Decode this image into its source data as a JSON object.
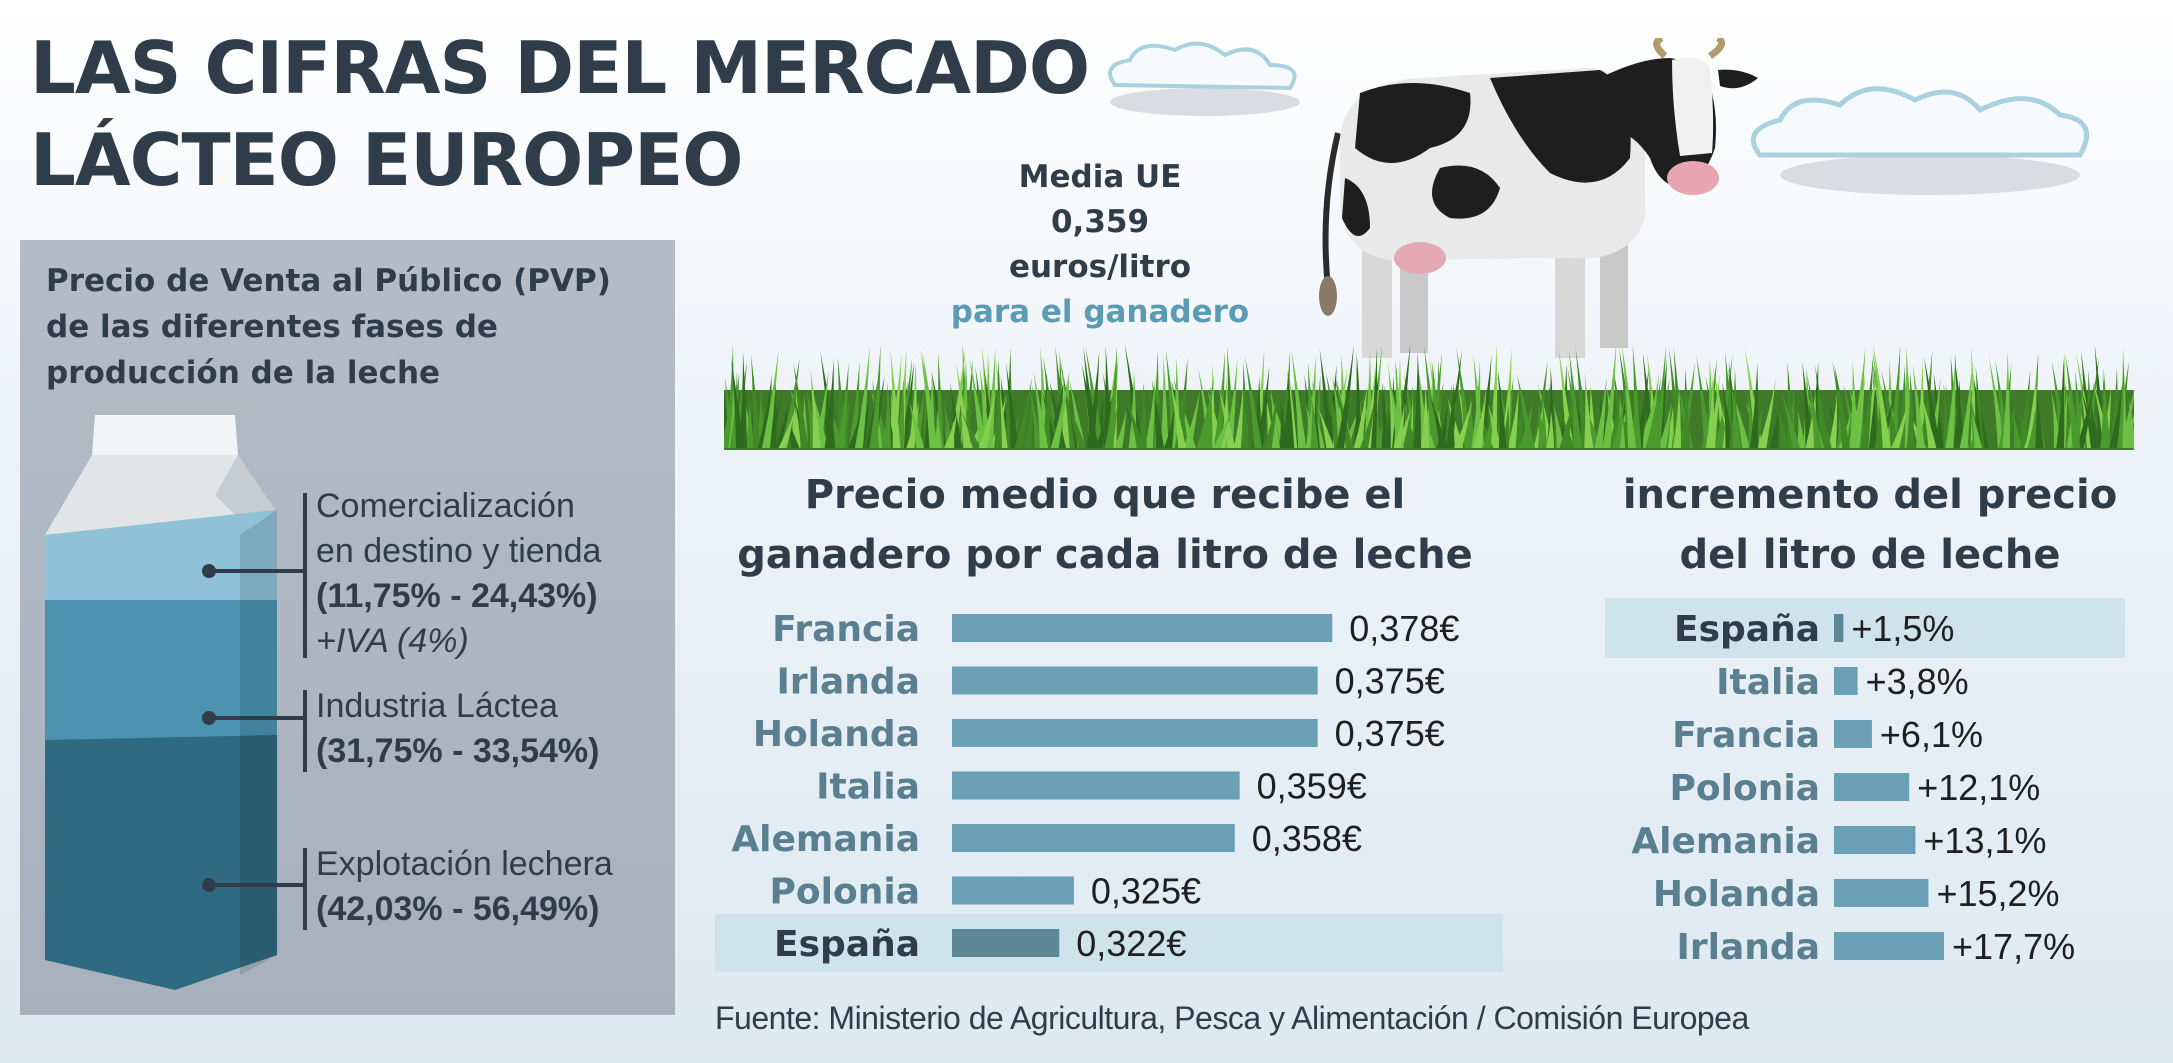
{
  "title": {
    "line1": "LAS CIFRAS DEL MERCADO",
    "line2": "LÁCTEO EUROPEO"
  },
  "pvp": {
    "heading_line1": "Precio de Venta al Público (PVP)",
    "heading_line2": "de las diferentes fases de",
    "heading_line3": "producción de la leche",
    "stages": [
      {
        "line1": "Comercialización",
        "line2": "en destino y tienda",
        "range": "(11,75% - 24,43%)",
        "note": "+IVA (4%)"
      },
      {
        "line1": "Industria Láctea",
        "range": "(31,75% - 33,54%)"
      },
      {
        "line1": "Explotación lechera",
        "range": "(42,03% - 56,49%)"
      }
    ]
  },
  "media_ue": {
    "line1": "Media UE",
    "line2": "0,359",
    "line3": "euros/litro",
    "line4": "para el ganadero"
  },
  "colors": {
    "bar": "#6a9fb5",
    "bar_highlight": "#5f8896",
    "highlight_bg": "#cfe3ec",
    "accent": "#5a9bb5",
    "title": "#2f3d4a"
  },
  "chart_data": [
    {
      "type": "bar",
      "orientation": "horizontal",
      "title": "Precio medio que recibe el ganadero por cada litro de leche",
      "categories": [
        "Francia",
        "Irlanda",
        "Holanda",
        "Italia",
        "Alemania",
        "Polonia",
        "España"
      ],
      "values": [
        0.378,
        0.375,
        0.375,
        0.359,
        0.358,
        0.325,
        0.322
      ],
      "value_labels": [
        "0,378€",
        "0,375€",
        "0,375€",
        "0,359€",
        "0,358€",
        "0,325€",
        "0,322€"
      ],
      "highlight": "España",
      "xlim": [
        0.3,
        0.38
      ]
    },
    {
      "type": "bar",
      "orientation": "horizontal",
      "title": "incremento del precio del litro de leche",
      "categories": [
        "España",
        "Italia",
        "Francia",
        "Polonia",
        "Alemania",
        "Holanda",
        "Irlanda"
      ],
      "values": [
        1.5,
        3.8,
        6.1,
        12.1,
        13.1,
        15.2,
        17.7
      ],
      "value_labels": [
        "+1,5%",
        "+3,8%",
        "+6,1%",
        "+12,1%",
        "+13,1%",
        "+15,2%",
        "+17,7%"
      ],
      "highlight": "España",
      "xlim": [
        0,
        17.7
      ]
    }
  ],
  "chart_titles": {
    "left_line1": "Precio medio que recibe el",
    "left_line2": "ganadero por cada litro de leche",
    "right_line1": "incremento del precio",
    "right_line2": "del litro de leche"
  },
  "source": "Fuente: Ministerio de Agricultura, Pesca y Alimentación / Comisión Europea"
}
